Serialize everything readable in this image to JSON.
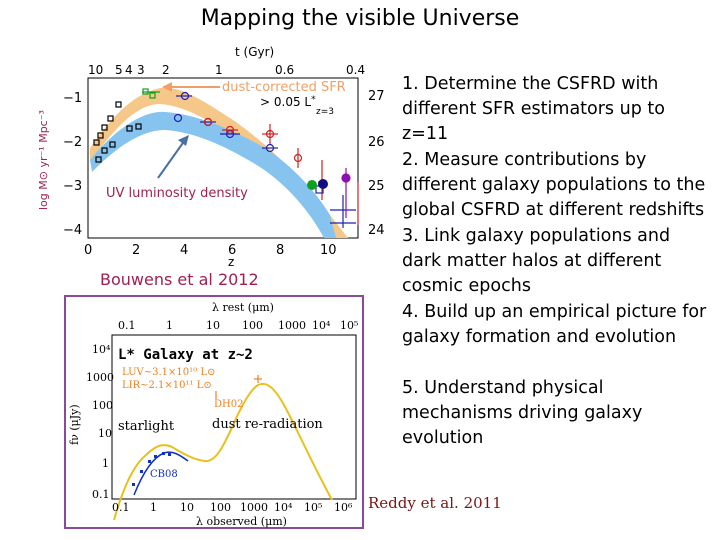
{
  "slide": {
    "title": "Mapping the visible Universe",
    "points": [
      "1.  Determine the CSFRD with different SFR estimators up to z=11",
      "2.  Measure contributions by different galaxy populations to the global CSFRD at different redshifts",
      "3.  Link galaxy populations and dark matter halos at different cosmic epochs",
      "4.  Build up an empirical picture for galaxy formation and evolution",
      "5.  Understand physical mechanisms driving galaxy evolution"
    ],
    "citation_top": "Bouwens  et al 2012",
    "citation_bottom": "Reddy et al. 2011"
  },
  "top_plot": {
    "top_axis_label": "t (Gyr)",
    "top_ticks": [
      "10",
      "5",
      "4",
      "3",
      "2",
      "1",
      "0.6",
      "0.4"
    ],
    "left_axis_label": "log M⊙ yr⁻¹ Mpc⁻³",
    "left_ticks": [
      "−1",
      "−2",
      "−3",
      "−4"
    ],
    "bottom_ticks": [
      "0",
      "2",
      "4",
      "6",
      "8",
      "10"
    ],
    "bottom_axis_label": "z",
    "right_ticks": [
      "27",
      "26",
      "25",
      "24"
    ],
    "label_dust": "dust-corrected SFR",
    "label_uv": "UV luminosity density",
    "label_lim_a": "> 0.05 L",
    "label_lim_b": "*",
    "label_lim_c": "z=3",
    "colors": {
      "dust_band": "#f5c88a",
      "uv_band": "#86c3ef",
      "dust_label": "#f0a066",
      "uv_label": "#a02050",
      "arrow_blue": "#4a6fa5",
      "points_red": "#d02020",
      "points_blue": "#2020b0",
      "points_green": "#10a020",
      "points_purple": "#8a10b0"
    }
  },
  "bottom_plot": {
    "top_axis_label": "λ rest (μm)",
    "top_ticks": [
      "0.1",
      "1",
      "10",
      "100",
      "1000",
      "10⁴",
      "10⁵"
    ],
    "left_ticks": [
      "10⁴",
      "1000",
      "100",
      "10",
      "1",
      "0.1"
    ],
    "left_axis_label": "fν (μJy)",
    "bottom_ticks": [
      "0.1",
      "1",
      "10",
      "100",
      "1000",
      "10⁴",
      "10⁵",
      "10⁶"
    ],
    "bottom_axis_label": "λ observed (μm)",
    "inset_title": "L* Galaxy at z~2",
    "luv": "LUV~3.1×10¹⁰ L⊙",
    "lir": "LIR~2.1×10¹¹ L⊙",
    "label_starlight": "starlight",
    "label_dust": "dust re-radiation",
    "label_dh": "DH02",
    "label_cb": "CB08",
    "colors": {
      "frame": "#8a4a9c",
      "sed": "#e8c020",
      "pts_blue": "#1030c0",
      "pts_orange": "#f08020"
    }
  }
}
